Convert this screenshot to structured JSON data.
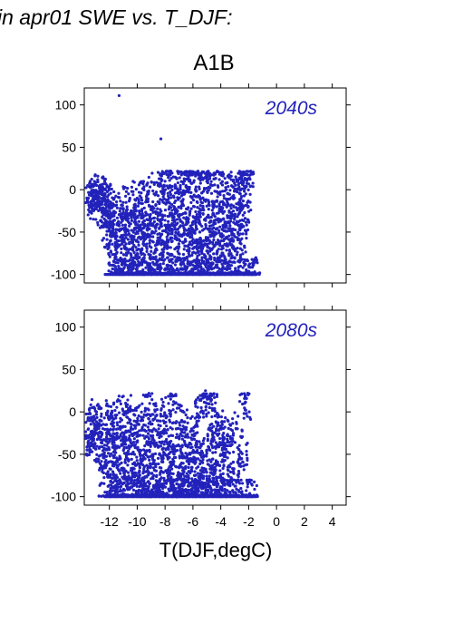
{
  "header": {
    "title": "in apr01 SWE vs. T_DJF:",
    "scenario": "A1B"
  },
  "colors": {
    "points": "#2222bb",
    "panel_label": "#2222bb",
    "axes": "#000000"
  },
  "chart_data": {
    "type": "scatter",
    "xlabel": "T(DJF,degC)",
    "ylabel": "",
    "xlim": [
      -13.8,
      5
    ],
    "ylim": [
      -110,
      120
    ],
    "x_ticks": [
      -12,
      -10,
      -8,
      -6,
      -4,
      -2,
      0,
      2,
      4
    ],
    "x_tick_labels": [
      "-12",
      "-10",
      "-8",
      "-6",
      "-4",
      "-2",
      "0",
      "2",
      "4"
    ],
    "y_ticks": [
      100,
      50,
      0,
      -50,
      -100
    ],
    "y_tick_labels": [
      "100",
      "50",
      "0",
      "-50",
      "-100"
    ],
    "grid": false,
    "legend": "none",
    "panels": [
      {
        "label": "2040s",
        "outliers": [
          [
            -11.3,
            111
          ],
          [
            -8.3,
            60
          ],
          [
            -13.3,
            -5
          ],
          [
            -12.3,
            -68
          ]
        ],
        "points": [
          [
            -13.5,
            -10
          ],
          [
            -13.3,
            -15
          ],
          [
            -13.1,
            -8
          ],
          [
            -12.9,
            -3
          ],
          [
            -12.7,
            -20
          ],
          [
            -12.6,
            -2
          ],
          [
            -12.5,
            -25
          ],
          [
            -12.3,
            -5
          ],
          [
            -12.2,
            -40
          ],
          [
            -12.1,
            -12
          ],
          [
            -12.0,
            -30
          ],
          [
            -11.9,
            -60
          ],
          [
            -11.8,
            -50
          ],
          [
            -11.7,
            -18
          ],
          [
            -11.6,
            -80
          ],
          [
            -11.5,
            -100
          ],
          [
            -11.3,
            -100
          ],
          [
            -11.2,
            -65
          ],
          [
            -11.1,
            -35
          ],
          [
            -11.0,
            -100
          ],
          [
            -10.9,
            -45
          ],
          [
            -10.8,
            -15
          ],
          [
            -10.7,
            -75
          ],
          [
            -10.6,
            -100
          ],
          [
            -10.5,
            -55
          ],
          [
            -10.4,
            -28
          ],
          [
            -10.3,
            -90
          ],
          [
            -10.2,
            -100
          ],
          [
            -10.1,
            -40
          ],
          [
            -10.0,
            -10
          ],
          [
            -9.9,
            -70
          ],
          [
            -9.8,
            -100
          ],
          [
            -9.7,
            -25
          ],
          [
            -9.6,
            -55
          ],
          [
            -9.5,
            -100
          ],
          [
            -9.4,
            -85
          ],
          [
            -9.3,
            -35
          ],
          [
            -9.2,
            -5
          ],
          [
            -9.1,
            -60
          ],
          [
            -9.0,
            -100
          ],
          [
            -8.9,
            -20
          ],
          [
            -8.8,
            -75
          ],
          [
            -8.7,
            -45
          ],
          [
            -8.6,
            -100
          ],
          [
            -8.5,
            5
          ],
          [
            -8.4,
            -90
          ],
          [
            -8.3,
            -30
          ],
          [
            -8.2,
            -60
          ],
          [
            -8.1,
            -100
          ],
          [
            -8.0,
            10
          ],
          [
            -7.9,
            -50
          ],
          [
            -7.8,
            -80
          ],
          [
            -7.7,
            -15
          ],
          [
            -7.6,
            -100
          ],
          [
            -7.5,
            -40
          ],
          [
            -7.4,
            15
          ],
          [
            -7.3,
            -70
          ],
          [
            -7.2,
            -95
          ],
          [
            -7.1,
            -25
          ],
          [
            -7.0,
            -100
          ],
          [
            -6.9,
            5
          ],
          [
            -6.8,
            -55
          ],
          [
            -6.7,
            -85
          ],
          [
            -6.6,
            18
          ],
          [
            -6.5,
            -35
          ],
          [
            -6.4,
            -100
          ],
          [
            -6.3,
            -65
          ],
          [
            -6.2,
            10
          ],
          [
            -6.1,
            -45
          ],
          [
            -6.0,
            -100
          ],
          [
            -5.9,
            -20
          ],
          [
            -5.8,
            -75
          ],
          [
            -5.7,
            20
          ],
          [
            -5.6,
            -90
          ],
          [
            -5.5,
            -50
          ],
          [
            -5.4,
            -100
          ],
          [
            -5.3,
            -10
          ],
          [
            -5.2,
            -60
          ],
          [
            -5.1,
            15
          ],
          [
            -5.0,
            -85
          ],
          [
            -4.9,
            -30
          ],
          [
            -4.8,
            -100
          ],
          [
            -4.7,
            -70
          ],
          [
            -4.6,
            5
          ],
          [
            -4.5,
            -45
          ],
          [
            -4.4,
            -100
          ],
          [
            -4.3,
            -20
          ],
          [
            -4.2,
            -80
          ],
          [
            -4.1,
            12
          ],
          [
            -4.0,
            -55
          ],
          [
            -3.9,
            -95
          ],
          [
            -3.8,
            -35
          ],
          [
            -3.7,
            -100
          ],
          [
            -3.6,
            0
          ],
          [
            -3.5,
            -65
          ],
          [
            -3.4,
            -25
          ],
          [
            -3.3,
            -100
          ],
          [
            -3.2,
            -50
          ],
          [
            -3.1,
            10
          ],
          [
            -3.0,
            -80
          ],
          [
            -2.9,
            -40
          ],
          [
            -2.8,
            -100
          ],
          [
            -2.7,
            -15
          ],
          [
            -2.6,
            -60
          ],
          [
            -2.5,
            15
          ],
          [
            -2.4,
            -30
          ],
          [
            -2.3,
            -100
          ],
          [
            -2.2,
            -5
          ],
          [
            -2.1,
            18
          ],
          [
            -2.0,
            -100
          ],
          [
            -1.8,
            -100
          ],
          [
            -1.5,
            -100
          ]
        ]
      },
      {
        "label": "2080s",
        "outliers": [
          [
            -13.6,
            -45
          ],
          [
            -10.7,
            -55
          ]
        ],
        "points": [
          [
            -13.7,
            -30
          ],
          [
            -13.5,
            -20
          ],
          [
            -13.3,
            -40
          ],
          [
            -13.1,
            -5
          ],
          [
            -12.9,
            -25
          ],
          [
            -12.7,
            -10
          ],
          [
            -12.5,
            -50
          ],
          [
            -12.3,
            -100
          ],
          [
            -12.2,
            -15
          ],
          [
            -12.1,
            -60
          ],
          [
            -12.0,
            -35
          ],
          [
            -11.9,
            -100
          ],
          [
            -11.8,
            -5
          ],
          [
            -11.7,
            -75
          ],
          [
            -11.6,
            -45
          ],
          [
            -11.5,
            -100
          ],
          [
            -11.4,
            -20
          ],
          [
            -11.3,
            -85
          ],
          [
            -11.2,
            -55
          ],
          [
            -11.1,
            -100
          ],
          [
            -11.0,
            -30
          ],
          [
            -10.9,
            0
          ],
          [
            -10.8,
            -70
          ],
          [
            -10.7,
            -100
          ],
          [
            -10.6,
            -40
          ],
          [
            -10.5,
            -90
          ],
          [
            -10.4,
            -15
          ],
          [
            -10.3,
            -100
          ],
          [
            -10.2,
            -60
          ],
          [
            -10.1,
            -25
          ],
          [
            -10.0,
            -100
          ],
          [
            -9.9,
            -80
          ],
          [
            -9.8,
            -45
          ],
          [
            -9.7,
            -100
          ],
          [
            -9.6,
            -10
          ],
          [
            -9.5,
            -65
          ],
          [
            -9.4,
            -100
          ],
          [
            -9.3,
            -35
          ],
          [
            -9.2,
            -90
          ],
          [
            -9.1,
            10
          ],
          [
            -9.0,
            -100
          ],
          [
            -8.9,
            -55
          ],
          [
            -8.8,
            -20
          ],
          [
            -8.7,
            -100
          ],
          [
            -8.6,
            -75
          ],
          [
            -8.5,
            -40
          ],
          [
            -8.4,
            -100
          ],
          [
            -8.3,
            -5
          ],
          [
            -8.2,
            -85
          ],
          [
            -8.1,
            -100
          ],
          [
            -8.0,
            -50
          ],
          [
            -7.9,
            -25
          ],
          [
            -7.8,
            -100
          ],
          [
            -7.7,
            -70
          ],
          [
            -7.6,
            15
          ],
          [
            -7.5,
            -100
          ],
          [
            -7.4,
            -45
          ],
          [
            -7.3,
            -90
          ],
          [
            -7.2,
            -100
          ],
          [
            -7.1,
            -30
          ],
          [
            -7.0,
            -65
          ],
          [
            -6.9,
            -100
          ],
          [
            -6.8,
            -10
          ],
          [
            -6.7,
            -80
          ],
          [
            -6.6,
            -100
          ],
          [
            -6.5,
            -40
          ],
          [
            -6.4,
            -95
          ],
          [
            -6.3,
            -100
          ],
          [
            -6.2,
            -55
          ],
          [
            -6.1,
            -20
          ],
          [
            -6.0,
            -100
          ],
          [
            -5.9,
            -75
          ],
          [
            -5.8,
            -100
          ],
          [
            -5.7,
            -35
          ],
          [
            -5.6,
            -90
          ],
          [
            -5.5,
            -100
          ],
          [
            -5.4,
            5
          ],
          [
            -5.3,
            -60
          ],
          [
            -5.2,
            -100
          ],
          [
            -5.1,
            25
          ],
          [
            -5.0,
            -45
          ],
          [
            -4.9,
            -100
          ],
          [
            -4.8,
            -80
          ],
          [
            -4.7,
            15
          ],
          [
            -4.6,
            -100
          ],
          [
            -4.5,
            -30
          ],
          [
            -4.4,
            -70
          ],
          [
            -4.3,
            -100
          ],
          [
            -4.2,
            -15
          ],
          [
            -4.1,
            -95
          ],
          [
            -4.0,
            -50
          ],
          [
            -3.9,
            -100
          ],
          [
            -3.8,
            -25
          ],
          [
            -3.7,
            -85
          ],
          [
            -3.6,
            -100
          ],
          [
            -3.5,
            -40
          ],
          [
            -3.3,
            -100
          ],
          [
            -3.1,
            -70
          ],
          [
            -2.9,
            -20
          ],
          [
            -2.7,
            -100
          ],
          [
            -2.5,
            -55
          ],
          [
            -2.3,
            10
          ],
          [
            -2.1,
            -100
          ],
          [
            -1.8,
            -100
          ]
        ]
      }
    ]
  }
}
